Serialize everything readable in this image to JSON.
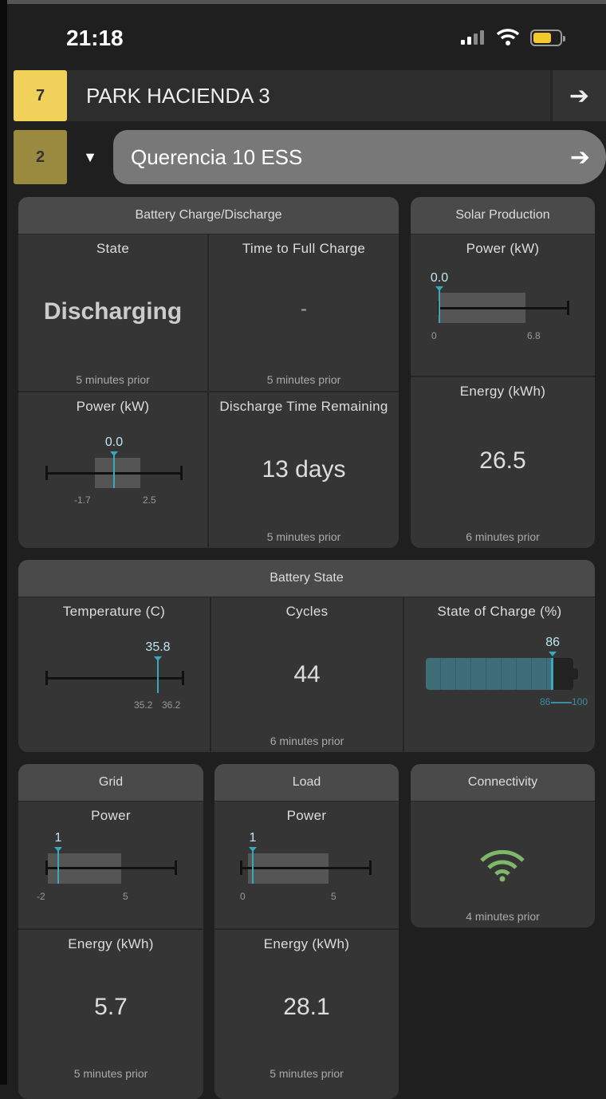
{
  "status_bar": {
    "time": "21:18"
  },
  "site": {
    "badge": "7",
    "name": "PARK HACIENDA 3",
    "badge_color": "#f0d25a"
  },
  "device": {
    "badge": "2",
    "name": "Querencia 10 ESS",
    "badge_color": "#9a8a40"
  },
  "battery_charge": {
    "title": "Battery Charge/Discharge",
    "state": {
      "label": "State",
      "value": "Discharging",
      "updated": "5 minutes prior"
    },
    "time_full": {
      "label": "Time to Full Charge",
      "value": "-",
      "updated": "5 minutes prior"
    },
    "power": {
      "label": "Power (kW)",
      "value": "0.0",
      "min": "-1.7",
      "max": "2.5"
    },
    "discharge_time": {
      "label": "Discharge Time Remaining",
      "value": "13 days",
      "updated": "5 minutes prior"
    }
  },
  "solar": {
    "title": "Solar Production",
    "power": {
      "label": "Power (kW)",
      "value": "0.0",
      "min": "0",
      "max": "6.8"
    },
    "energy": {
      "label": "Energy (kWh)",
      "value": "26.5",
      "updated": "6 minutes prior"
    }
  },
  "battery_state": {
    "title": "Battery State",
    "temperature": {
      "label": "Temperature (C)",
      "value": "35.8",
      "min": "35.2",
      "max": "36.2"
    },
    "cycles": {
      "label": "Cycles",
      "value": "44",
      "updated": "6 minutes prior"
    },
    "soc": {
      "label": "State of Charge (%)",
      "value": "86",
      "min": "86",
      "max": "100",
      "percent": 86
    }
  },
  "grid": {
    "title": "Grid",
    "power": {
      "label": "Power",
      "value": "1",
      "min": "-2",
      "max": "5"
    },
    "energy": {
      "label": "Energy (kWh)",
      "value": "5.7",
      "updated": "5 minutes prior"
    }
  },
  "load": {
    "title": "Load",
    "power": {
      "label": "Power",
      "value": "1",
      "min": "0",
      "max": "5"
    },
    "energy": {
      "label": "Energy (kWh)",
      "value": "28.1",
      "updated": "5 minutes prior"
    }
  },
  "connectivity": {
    "title": "Connectivity",
    "icon": "wifi-icon",
    "color": "#7fb86a",
    "updated": "4 minutes prior"
  },
  "accent": "#3aa7c0"
}
